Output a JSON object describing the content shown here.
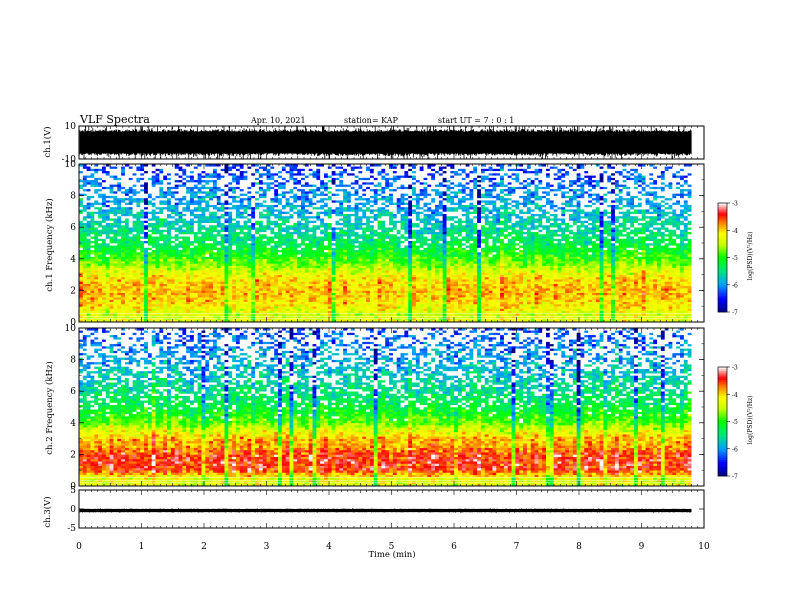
{
  "header": {
    "title": "VLF Spectra",
    "date": "Apr. 10, 2021",
    "station": "station= KAP",
    "start_ut": "start  UT =   7 : 0  : 1"
  },
  "chart_data": [
    {
      "type": "line",
      "name": "ch1-waveform",
      "ylabel": "ch.1(V)",
      "y_ticks": [
        "10",
        "-10"
      ],
      "ylim": [
        -10,
        10
      ],
      "xlim": [
        0,
        10
      ],
      "x_data_end_min": 9.8
    },
    {
      "type": "heatmap",
      "name": "ch1-spectrogram",
      "ylabel": "ch.1 Frequency (kHz)",
      "y_ticks": [
        "0",
        "2",
        "4",
        "6",
        "8",
        "10"
      ],
      "ylim_khz": [
        0,
        10
      ],
      "xlim_min": [
        0,
        10
      ],
      "x_data_end_min": 9.8,
      "colorbar": {
        "label": "log(PSD)(V²/Hz)",
        "ticks": [
          "-3",
          "-4",
          "-5",
          "-6",
          "-7"
        ],
        "range": [
          -7,
          -3
        ]
      },
      "intense_band_khz": [
        1.0,
        3.2
      ],
      "profile_log_psd": {
        "f_khz": [
          0,
          0.5,
          1,
          1.5,
          2,
          2.5,
          3,
          3.5,
          4,
          5,
          6,
          7,
          8,
          9,
          10
        ],
        "log_psd": [
          -4.3,
          -4.4,
          -4.1,
          -4.0,
          -3.9,
          -4.0,
          -4.2,
          -4.6,
          -4.9,
          -5.3,
          -5.6,
          -5.8,
          -6.0,
          -6.2,
          -6.4
        ]
      }
    },
    {
      "type": "heatmap",
      "name": "ch2-spectrogram",
      "ylabel": "ch.2 Frequency (kHz)",
      "y_ticks": [
        "0",
        "2",
        "4",
        "6",
        "8",
        "10"
      ],
      "ylim_khz": [
        0,
        10
      ],
      "xlim_min": [
        0,
        10
      ],
      "x_data_end_min": 9.8,
      "colorbar": {
        "label": "log(PSD)(V²/Hz)",
        "ticks": [
          "-3",
          "-4",
          "-5",
          "-6",
          "-7"
        ],
        "range": [
          -7,
          -3
        ]
      },
      "intense_band_khz": [
        0.8,
        2.5
      ],
      "profile_log_psd": {
        "f_khz": [
          0,
          0.5,
          1,
          1.5,
          2,
          2.5,
          3,
          3.5,
          4,
          5,
          6,
          7,
          8,
          9,
          10
        ],
        "log_psd": [
          -4.3,
          -4.3,
          -3.5,
          -3.4,
          -3.5,
          -3.8,
          -3.9,
          -4.3,
          -4.8,
          -5.2,
          -5.5,
          -5.7,
          -5.9,
          -6.1,
          -6.3
        ]
      }
    },
    {
      "type": "line",
      "name": "ch3-waveform",
      "ylabel": "ch.3(V)",
      "y_ticks": [
        "5",
        "0",
        "-5"
      ],
      "ylim": [
        -5,
        5
      ],
      "xlim": [
        0,
        10
      ],
      "x_data_end_min": 9.8,
      "trace_band_v": [
        -0.8,
        0.0
      ],
      "xlabel": "Time (min)",
      "x_ticks": [
        "0",
        "1",
        "2",
        "3",
        "4",
        "5",
        "6",
        "7",
        "8",
        "9",
        "10"
      ]
    }
  ]
}
